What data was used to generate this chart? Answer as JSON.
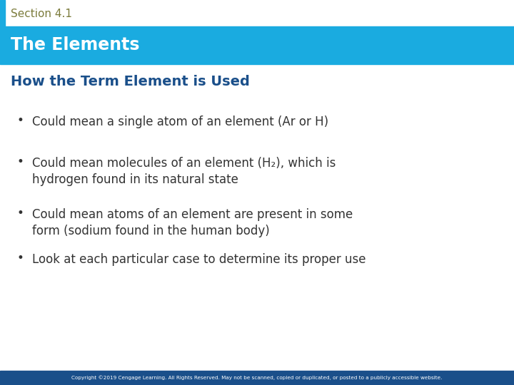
{
  "section_label": "Section 4.1",
  "section_label_color": "#7B7B3B",
  "title_banner_text": "The Elements",
  "title_banner_color": "#1AABE0",
  "title_banner_text_color": "#FFFFFF",
  "subtitle_text": "How the Term Element is Used",
  "subtitle_color": "#1A4F8A",
  "bullet_points": [
    "Could mean a single atom of an element (Ar or H)",
    "Could mean molecules of an element (H₂), which is\nhydrogen found in its natural state",
    "Could mean atoms of an element are present in some\nform (sodium found in the human body)",
    "Look at each particular case to determine its proper use"
  ],
  "bullet_color": "#333333",
  "bullet_marker": "•",
  "footer_text": "Copyright ©2019 Cengage Learning. All Rights Reserved. May not be scanned, copied or duplicated, or posted to a publicly accessible website.",
  "footer_bg_color": "#1A4F8A",
  "footer_text_color": "#FFFFFF",
  "bg_color": "#FFFFFF",
  "left_accent_color": "#1AABE0",
  "fig_width": 7.2,
  "fig_height": 5.4
}
